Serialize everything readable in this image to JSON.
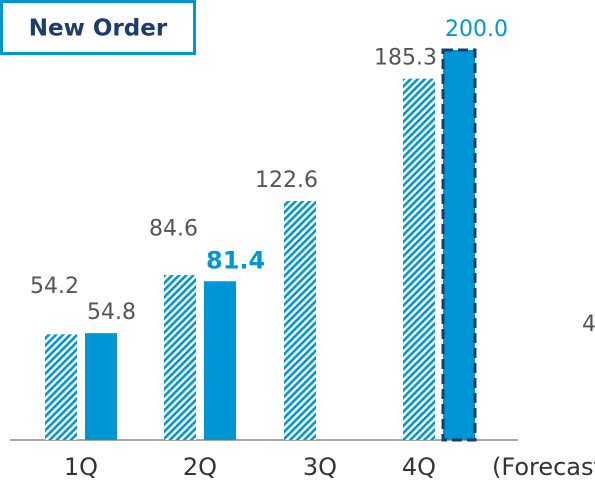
{
  "title": "New Order",
  "chart_data": {
    "type": "bar",
    "categories": [
      "1Q",
      "2Q",
      "3Q",
      "4Q"
    ],
    "series": [
      {
        "color": "#0096d6",
        "pattern": "hatch",
        "values": [
          54.2,
          84.6,
          122.6,
          185.3
        ]
      },
      {
        "color": "#0096d6",
        "values": [
          54.8,
          81.4,
          null,
          200.0
        ],
        "value_labels": [
          null,
          null,
          null,
          "200.0"
        ],
        "dashed": [
          false,
          false,
          false,
          true
        ],
        "bold_labels": [
          false,
          true,
          false,
          false
        ]
      }
    ],
    "annotations": [
      "(Forecast)",
      "4"
    ]
  }
}
